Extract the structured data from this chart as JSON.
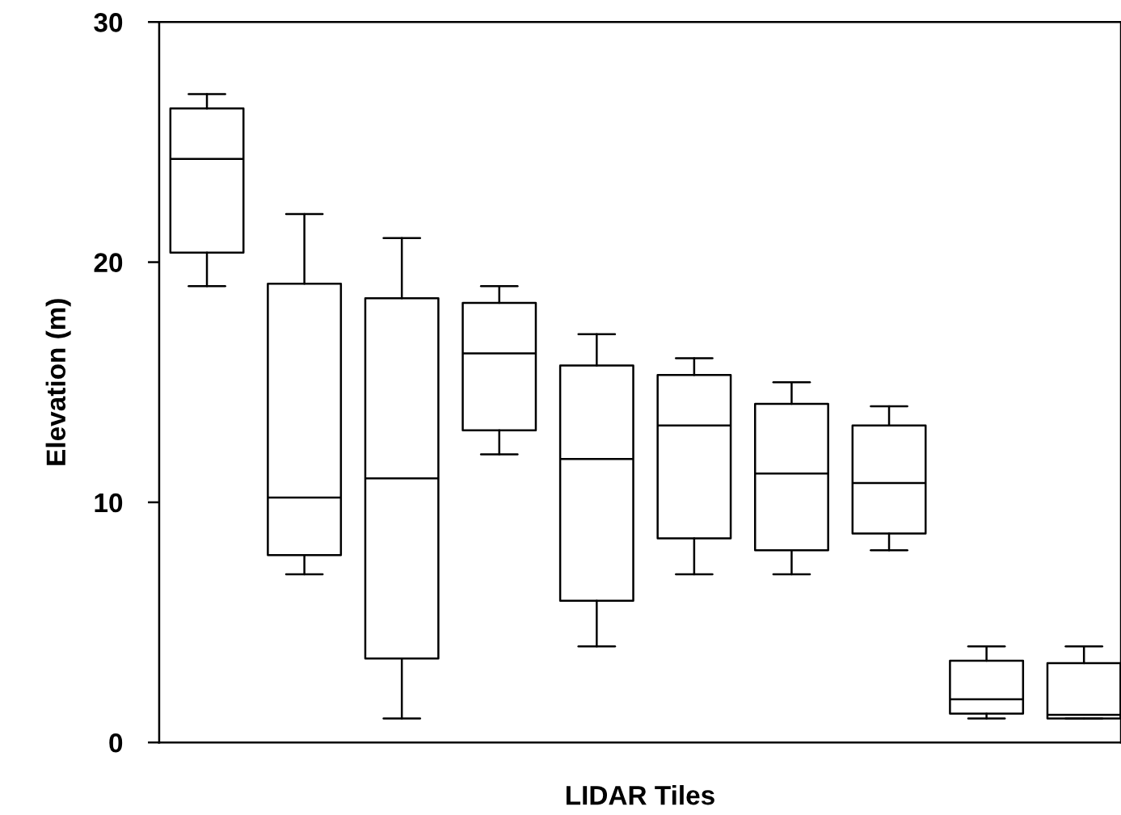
{
  "chart_data": {
    "type": "box",
    "xlabel": "LIDAR Tiles",
    "ylabel": "Elevation (m)",
    "categories": [
      null,
      null,
      null,
      null,
      null,
      null,
      null,
      null,
      null,
      null
    ],
    "boxes": [
      {
        "low": 19.0,
        "q1": 20.4,
        "median": 24.3,
        "q3": 26.4,
        "high": 27.0
      },
      {
        "low": 7.0,
        "q1": 7.8,
        "median": 10.2,
        "q3": 19.1,
        "high": 22.0
      },
      {
        "low": 1.0,
        "q1": 3.5,
        "median": 11.0,
        "q3": 18.5,
        "high": 21.0
      },
      {
        "low": 12.0,
        "q1": 13.0,
        "median": 16.2,
        "q3": 18.3,
        "high": 19.0
      },
      {
        "low": 4.0,
        "q1": 5.9,
        "median": 11.8,
        "q3": 15.7,
        "high": 17.0
      },
      {
        "low": 7.0,
        "q1": 8.5,
        "median": 13.2,
        "q3": 15.3,
        "high": 16.0
      },
      {
        "low": 7.0,
        "q1": 8.0,
        "median": 11.2,
        "q3": 14.1,
        "high": 15.0
      },
      {
        "low": 8.0,
        "q1": 8.7,
        "median": 10.8,
        "q3": 13.2,
        "high": 14.0
      },
      {
        "low": 1.0,
        "q1": 1.2,
        "median": 1.8,
        "q3": 3.4,
        "high": 4.0
      },
      {
        "low": 1.0,
        "q1": 1.0,
        "median": 1.15,
        "q3": 3.3,
        "high": 4.0
      }
    ],
    "ylim": [
      0,
      30
    ],
    "yticks": [
      0,
      10,
      20,
      30
    ],
    "grid": false,
    "legend": false,
    "tick_labels": "y"
  }
}
